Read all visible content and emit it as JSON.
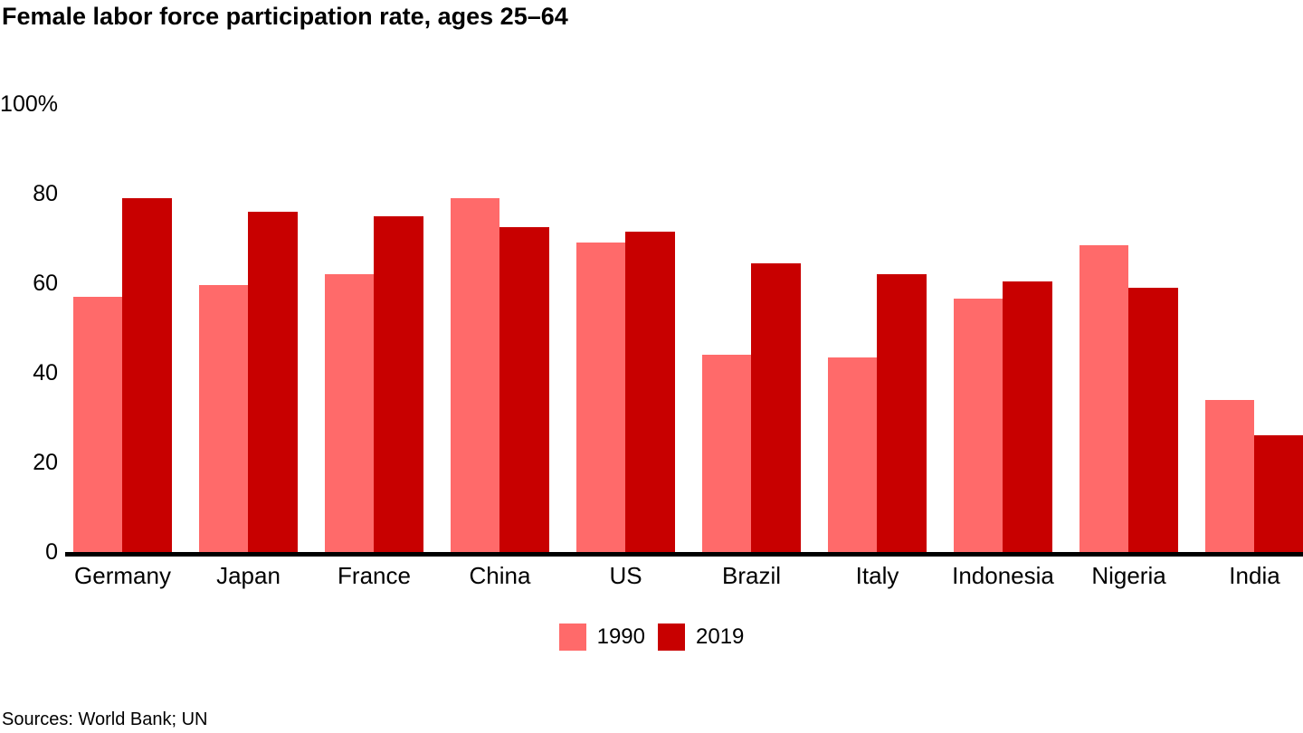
{
  "chart_data": {
    "type": "bar",
    "title": "Female labor force participation rate, ages 25–64",
    "categories": [
      "Germany",
      "Japan",
      "France",
      "China",
      "US",
      "Brazil",
      "Italy",
      "Indonesia",
      "Nigeria",
      "India"
    ],
    "series": [
      {
        "name": "1990",
        "color": "#FF6A6A",
        "values": [
          57,
          59.5,
          62,
          79,
          69,
          44,
          43.5,
          56.5,
          68.5,
          34
        ]
      },
      {
        "name": "2019",
        "color": "#C80000",
        "values": [
          79,
          76,
          75,
          72.5,
          71.5,
          64.5,
          62,
          60.5,
          59,
          26
        ]
      }
    ],
    "yticks": [
      {
        "value": 0,
        "label": "0"
      },
      {
        "value": 20,
        "label": "20"
      },
      {
        "value": 40,
        "label": "40"
      },
      {
        "value": 60,
        "label": "60"
      },
      {
        "value": 80,
        "label": "80"
      },
      {
        "value": 100,
        "label": "100%"
      }
    ],
    "ylim": [
      0,
      100
    ],
    "grid": false,
    "legend_position": "bottom",
    "axis_color": "#000000",
    "sources": "Sources: World Bank; UN"
  }
}
